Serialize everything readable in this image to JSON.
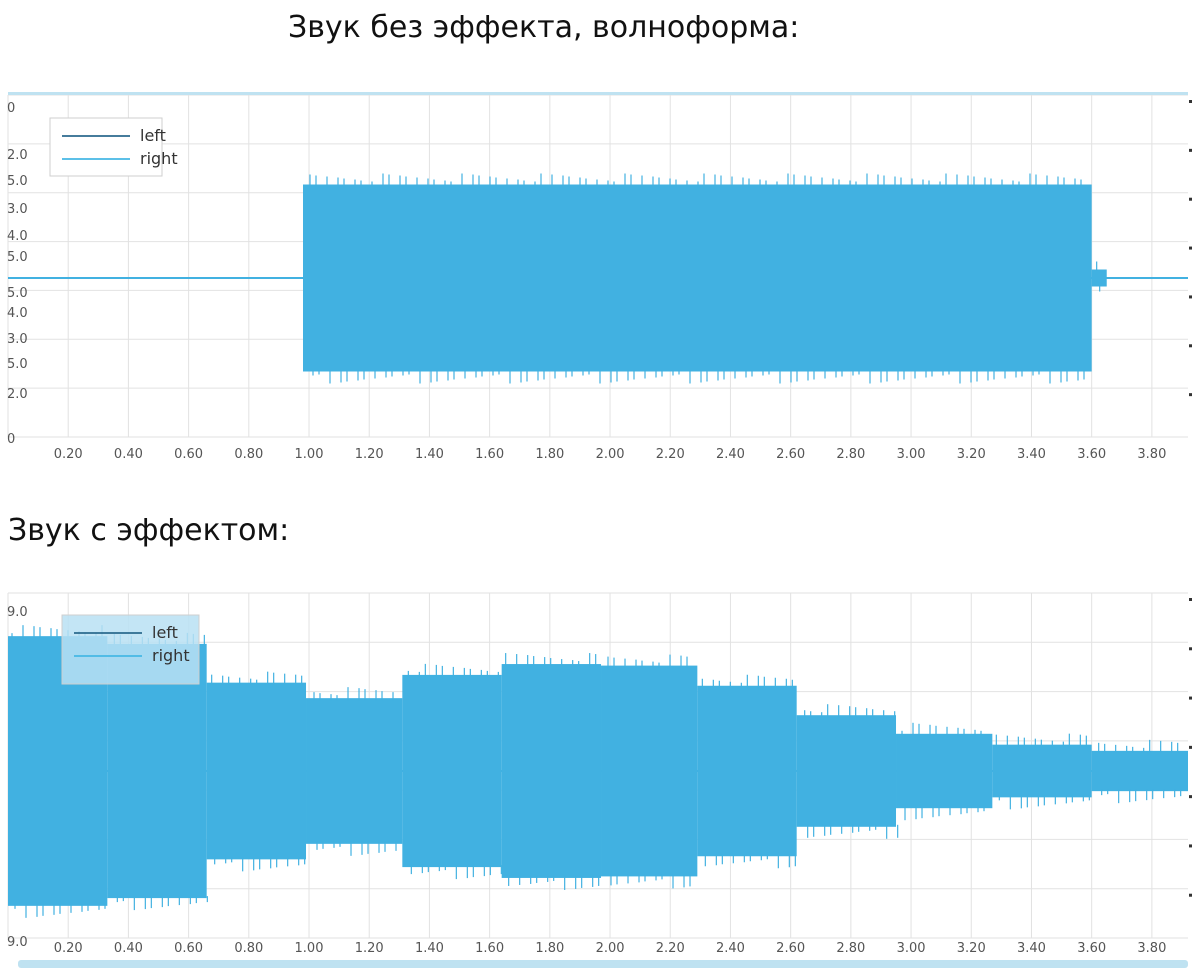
{
  "headings": {
    "top": "Звук без эффекта, волноформа:",
    "bottom": "Звук с эффектом:"
  },
  "colors": {
    "wave": "#41b1e1",
    "left_line": "#2b6a8e",
    "right_line": "#45b7e5",
    "grid": "#e2e2e2",
    "axis_band": "#bfe2f1"
  },
  "chart_data": [
    {
      "type": "area",
      "title": "Звук без эффекта, волноформа:",
      "xlabel": "",
      "ylabel": "",
      "xlim": [
        0,
        3.92
      ],
      "ylim": [
        -1,
        1
      ],
      "grid": true,
      "legend_placement": "top-left",
      "x_ticks": [
        "0.20",
        "0.40",
        "0.60",
        "0.80",
        "1.00",
        "1.20",
        "1.40",
        "1.60",
        "1.80",
        "2.00",
        "2.20",
        "2.40",
        "2.60",
        "2.80",
        "3.00",
        "3.20",
        "3.40",
        "3.60",
        "3.80"
      ],
      "y_tick_labels": [
        "0",
        "2.0",
        "5.0",
        "3.0",
        "4.0",
        "5.0",
        "5.0",
        "4.0",
        "3.0",
        "5.0",
        "2.0",
        "0"
      ],
      "series": [
        {
          "name": "left"
        },
        {
          "name": "right"
        }
      ],
      "envelope": [
        {
          "start": 0.0,
          "end": 0.98,
          "amp": 0.0
        },
        {
          "start": 0.98,
          "end": 3.6,
          "amp": 0.55
        },
        {
          "start": 3.6,
          "end": 3.65,
          "amp": 0.05
        },
        {
          "start": 3.65,
          "end": 3.92,
          "amp": 0.0
        }
      ]
    },
    {
      "type": "area",
      "title": "Звук с эффектом:",
      "xlabel": "",
      "ylabel": "",
      "xlim": [
        0,
        3.92
      ],
      "ylim": [
        -1,
        1
      ],
      "grid": true,
      "legend_placement": "top-left",
      "x_ticks": [
        "0.20",
        "0.40",
        "0.60",
        "0.80",
        "1.00",
        "1.20",
        "1.40",
        "1.60",
        "1.80",
        "2.00",
        "2.20",
        "2.40",
        "2.60",
        "2.80",
        "3.00",
        "3.20",
        "3.40",
        "3.60",
        "3.80"
      ],
      "y_tick_labels": [
        "9.0",
        "9.0"
      ],
      "series": [
        {
          "name": "left"
        },
        {
          "name": "right"
        }
      ],
      "envelope": [
        {
          "start": 0.0,
          "end": 0.33,
          "amp": 0.87
        },
        {
          "start": 0.33,
          "end": 0.66,
          "amp": 0.82
        },
        {
          "start": 0.66,
          "end": 0.99,
          "amp": 0.57
        },
        {
          "start": 0.99,
          "end": 1.31,
          "amp": 0.47
        },
        {
          "start": 1.31,
          "end": 1.64,
          "amp": 0.62
        },
        {
          "start": 1.64,
          "end": 1.97,
          "amp": 0.69
        },
        {
          "start": 1.97,
          "end": 2.29,
          "amp": 0.68
        },
        {
          "start": 2.29,
          "end": 2.62,
          "amp": 0.55
        },
        {
          "start": 2.62,
          "end": 2.95,
          "amp": 0.36
        },
        {
          "start": 2.95,
          "end": 3.27,
          "amp": 0.24
        },
        {
          "start": 3.27,
          "end": 3.6,
          "amp": 0.17
        },
        {
          "start": 3.6,
          "end": 3.92,
          "amp": 0.13
        }
      ]
    }
  ]
}
